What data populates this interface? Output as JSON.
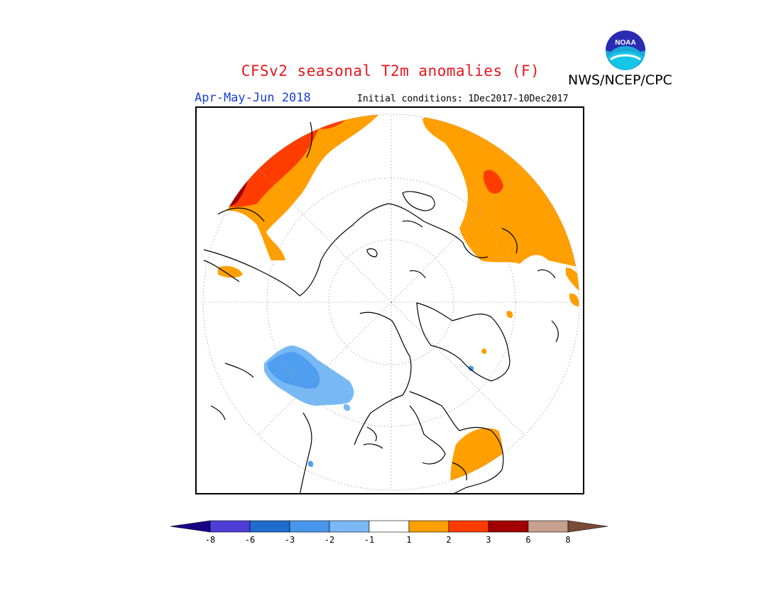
{
  "title": "CFSv2 seasonal T2m anomalies (F)",
  "agency": "NWS/NCEP/CPC",
  "logo": {
    "icon": "noaa-logo",
    "text": "NOAA"
  },
  "period": "Apr-May-Jun 2018",
  "initial_conditions": "Initial conditions: 1Dec2017-10Dec2017",
  "map": {
    "projection": "north polar stereographic",
    "colors": {
      "warm1": "#ff9f00",
      "warm2": "#ff3c00",
      "warm3": "#a10000",
      "cool1": "#78b9f5",
      "cool2": "#4f9ef0"
    }
  },
  "colorbar": {
    "ticks": [
      "-8",
      "-6",
      "-3",
      "-2",
      "-1",
      "1",
      "2",
      "3",
      "6",
      "8"
    ],
    "colors": [
      "#1a0085",
      "#4e3ed6",
      "#1f6ccf",
      "#4896eb",
      "#7ab8f5",
      "#ffffff",
      "#ff9f00",
      "#ff3c00",
      "#a10000",
      "#c8a090",
      "#7a4a38"
    ]
  }
}
